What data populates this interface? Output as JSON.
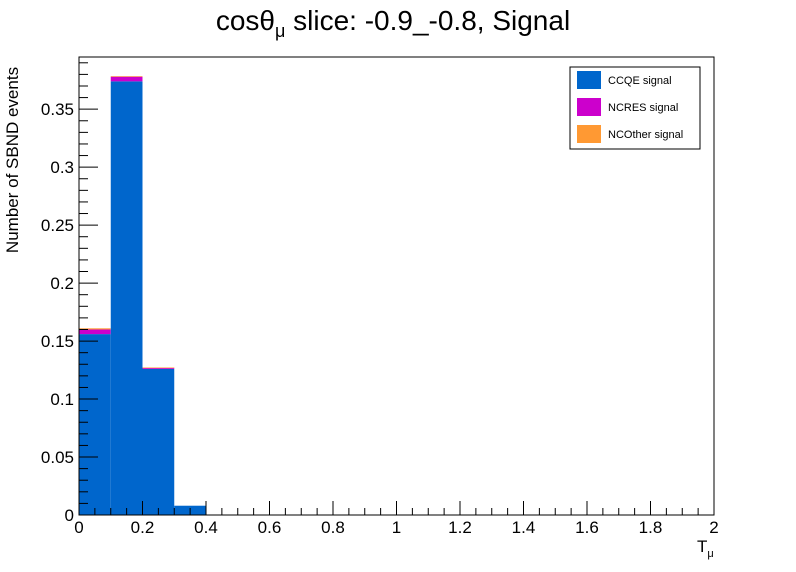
{
  "chart_data": {
    "type": "bar",
    "stacked": true,
    "title_main": "cosθ",
    "title_sub": "μ",
    "title_rest": " slice: -0.9_-0.8, Signal",
    "xlabel_main": "T",
    "xlabel_sub": "μ",
    "ylabel": "Number of SBND events",
    "xlim": [
      0,
      2
    ],
    "ylim": [
      0,
      0.395
    ],
    "bin_edges": [
      0,
      0.1,
      0.2,
      0.3,
      0.4,
      0.5,
      0.6,
      0.7,
      0.8,
      0.9,
      1.0,
      1.1,
      1.2,
      1.3,
      1.4,
      1.5,
      1.6,
      1.7,
      1.8,
      1.9,
      2.0
    ],
    "x_ticks": [
      {
        "value": 0,
        "label": "0"
      },
      {
        "value": 0.2,
        "label": "0.2"
      },
      {
        "value": 0.4,
        "label": "0.4"
      },
      {
        "value": 0.6,
        "label": "0.6"
      },
      {
        "value": 0.8,
        "label": "0.8"
      },
      {
        "value": 1.0,
        "label": "1"
      },
      {
        "value": 1.2,
        "label": "1.2"
      },
      {
        "value": 1.4,
        "label": "1.4"
      },
      {
        "value": 1.6,
        "label": "1.6"
      },
      {
        "value": 1.8,
        "label": "1.8"
      },
      {
        "value": 2.0,
        "label": "2"
      }
    ],
    "y_ticks": [
      {
        "value": 0,
        "label": "0"
      },
      {
        "value": 0.05,
        "label": "0.05"
      },
      {
        "value": 0.1,
        "label": "0.1"
      },
      {
        "value": 0.15,
        "label": "0.15"
      },
      {
        "value": 0.2,
        "label": "0.2"
      },
      {
        "value": 0.25,
        "label": "0.25"
      },
      {
        "value": 0.3,
        "label": "0.3"
      },
      {
        "value": 0.35,
        "label": "0.35"
      }
    ],
    "series": [
      {
        "name": "CCQE signal",
        "color": "#0066cc",
        "values": [
          0.156,
          0.374,
          0.126,
          0.008,
          0,
          0,
          0,
          0,
          0,
          0,
          0,
          0,
          0,
          0,
          0,
          0,
          0,
          0,
          0,
          0
        ]
      },
      {
        "name": "NCRES signal",
        "color": "#cc00cc",
        "values": [
          0.004,
          0.004,
          0.001,
          0,
          0,
          0,
          0,
          0,
          0,
          0,
          0,
          0,
          0,
          0,
          0,
          0,
          0,
          0,
          0,
          0
        ]
      },
      {
        "name": "NCOther signal",
        "color": "#ff9933",
        "values": [
          0.001,
          0.0005,
          0.0002,
          0,
          0,
          0,
          0,
          0,
          0,
          0,
          0,
          0,
          0,
          0,
          0,
          0,
          0,
          0,
          0,
          0
        ]
      }
    ],
    "legend": {
      "position": "top-right",
      "entries": [
        "CCQE signal",
        "NCRES signal",
        "NCOther signal"
      ]
    },
    "grid": false
  }
}
